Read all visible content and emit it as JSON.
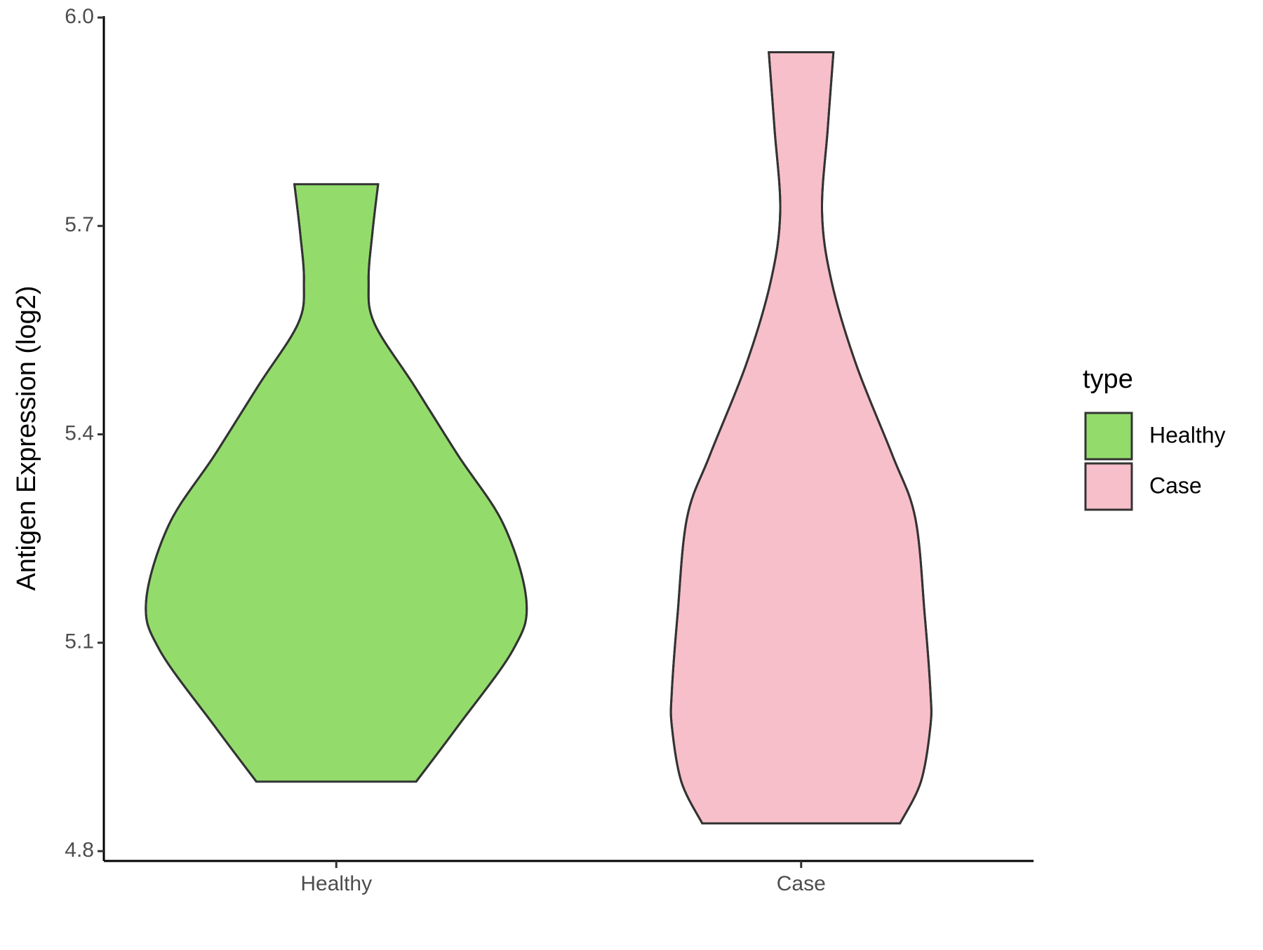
{
  "chart_data": {
    "type": "violin",
    "ylabel": "Antigen Expression (log2)",
    "categories": [
      "Healthy",
      "Case"
    ],
    "ylim": [
      4.8,
      6.0
    ],
    "yticks": [
      {
        "value": 4.8,
        "label": "4.8"
      },
      5.1,
      5.4,
      5.7,
      {
        "value": 6.0,
        "label": "6.0"
      }
    ],
    "legend_title": "type",
    "legend_position": "right",
    "series": [
      {
        "name": "Healthy",
        "color": "#93dc6b",
        "y": [
          4.9,
          4.98,
          5.09,
          5.16,
          5.27,
          5.37,
          5.47,
          5.56,
          5.62,
          5.69,
          5.76
        ],
        "density": [
          0.42,
          0.64,
          0.93,
          1.0,
          0.88,
          0.64,
          0.41,
          0.2,
          0.17,
          0.19,
          0.22
        ]
      },
      {
        "name": "Case",
        "color": "#f7bfca",
        "y": [
          4.84,
          4.9,
          4.98,
          5.03,
          5.14,
          5.28,
          5.37,
          5.5,
          5.62,
          5.72,
          5.84,
          5.95
        ],
        "density": [
          0.52,
          0.63,
          0.68,
          0.68,
          0.65,
          0.6,
          0.48,
          0.29,
          0.16,
          0.11,
          0.14,
          0.17
        ]
      }
    ]
  }
}
